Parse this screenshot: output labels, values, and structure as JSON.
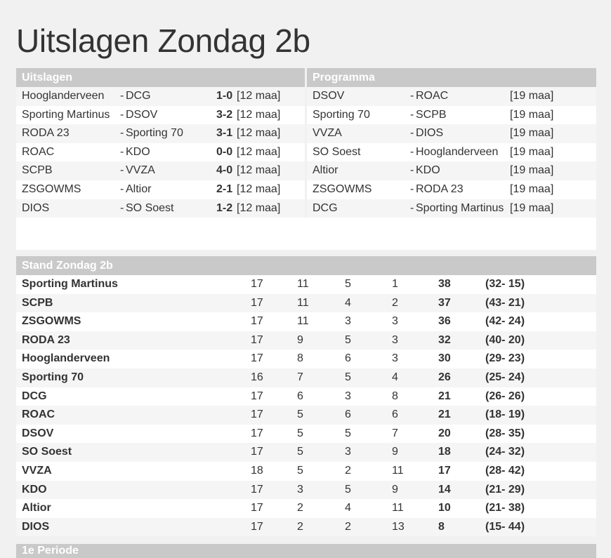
{
  "page": {
    "title": "Uitslagen Zondag 2b"
  },
  "results": {
    "heading": "Uitslagen",
    "matches": [
      {
        "home": "Hooglanderveen",
        "away": "DCG",
        "score": "1-0",
        "date": "[12 maa]"
      },
      {
        "home": "Sporting Martinus",
        "away": "DSOV",
        "score": "3-2",
        "date": "[12 maa]"
      },
      {
        "home": "RODA 23",
        "away": "Sporting 70",
        "score": "3-1",
        "date": "[12 maa]"
      },
      {
        "home": "ROAC",
        "away": "KDO",
        "score": "0-0",
        "date": "[12 maa]"
      },
      {
        "home": "SCPB",
        "away": "VVZA",
        "score": "4-0",
        "date": "[12 maa]"
      },
      {
        "home": "ZSGOWMS",
        "away": "Altior",
        "score": "2-1",
        "date": "[12 maa]"
      },
      {
        "home": "DIOS",
        "away": "SO Soest",
        "score": "1-2",
        "date": "[12 maa]"
      }
    ]
  },
  "program": {
    "heading": "Programma",
    "matches": [
      {
        "home": "DSOV",
        "away": "ROAC",
        "date": "[19 maa]"
      },
      {
        "home": "Sporting 70",
        "away": "SCPB",
        "date": "[19 maa]"
      },
      {
        "home": "VVZA",
        "away": "DIOS",
        "date": "[19 maa]"
      },
      {
        "home": "SO Soest",
        "away": "Hooglanderveen",
        "date": "[19 maa]"
      },
      {
        "home": "Altior",
        "away": "KDO",
        "date": "[19 maa]"
      },
      {
        "home": "ZSGOWMS",
        "away": "RODA 23",
        "date": "[19 maa]"
      },
      {
        "home": "DCG",
        "away": "Sporting Martinus",
        "date": "[19 maa]"
      }
    ]
  },
  "standings": {
    "heading": "Stand Zondag 2b",
    "rows": [
      {
        "team": "Sporting Martinus",
        "c1": "17",
        "c2": "11",
        "c3": "5",
        "c4": "1",
        "pts": "38",
        "goals": "(32- 15)"
      },
      {
        "team": "SCPB",
        "c1": "17",
        "c2": "11",
        "c3": "4",
        "c4": "2",
        "pts": "37",
        "goals": "(43- 21)"
      },
      {
        "team": "ZSGOWMS",
        "c1": "17",
        "c2": "11",
        "c3": "3",
        "c4": "3",
        "pts": "36",
        "goals": "(42- 24)"
      },
      {
        "team": "RODA 23",
        "c1": "17",
        "c2": "9",
        "c3": "5",
        "c4": "3",
        "pts": "32",
        "goals": "(40- 20)"
      },
      {
        "team": "Hooglanderveen",
        "c1": "17",
        "c2": "8",
        "c3": "6",
        "c4": "3",
        "pts": "30",
        "goals": "(29- 23)"
      },
      {
        "team": "Sporting 70",
        "c1": "16",
        "c2": "7",
        "c3": "5",
        "c4": "4",
        "pts": "26",
        "goals": "(25- 24)"
      },
      {
        "team": "DCG",
        "c1": "17",
        "c2": "6",
        "c3": "3",
        "c4": "8",
        "pts": "21",
        "goals": "(26- 26)"
      },
      {
        "team": "ROAC",
        "c1": "17",
        "c2": "5",
        "c3": "6",
        "c4": "6",
        "pts": "21",
        "goals": "(18- 19)"
      },
      {
        "team": "DSOV",
        "c1": "17",
        "c2": "5",
        "c3": "5",
        "c4": "7",
        "pts": "20",
        "goals": "(28- 35)"
      },
      {
        "team": "SO Soest",
        "c1": "17",
        "c2": "5",
        "c3": "3",
        "c4": "9",
        "pts": "18",
        "goals": "(24- 32)"
      },
      {
        "team": "VVZA",
        "c1": "18",
        "c2": "5",
        "c3": "2",
        "c4": "11",
        "pts": "17",
        "goals": "(28- 42)"
      },
      {
        "team": "KDO",
        "c1": "17",
        "c2": "3",
        "c3": "5",
        "c4": "9",
        "pts": "14",
        "goals": "(21- 29)"
      },
      {
        "team": "Altior",
        "c1": "17",
        "c2": "2",
        "c3": "4",
        "c4": "11",
        "pts": "10",
        "goals": "(21- 38)"
      },
      {
        "team": "DIOS",
        "c1": "17",
        "c2": "2",
        "c3": "2",
        "c4": "13",
        "pts": "8",
        "goals": "(15- 44)"
      }
    ]
  },
  "bottom": {
    "heading": "1e Periode"
  }
}
